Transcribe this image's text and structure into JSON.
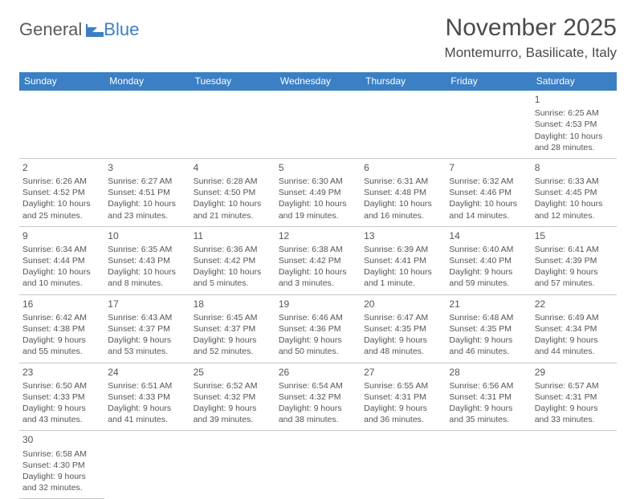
{
  "logo": {
    "part1": "General",
    "part2": "Blue"
  },
  "title": "November 2025",
  "location": "Montemurro, Basilicate, Italy",
  "colors": {
    "header_bg": "#3b7fc4",
    "header_text": "#ffffff",
    "text": "#4a4a4a",
    "cell_text": "#555555",
    "row_border": "#3b7fc4"
  },
  "day_names": [
    "Sunday",
    "Monday",
    "Tuesday",
    "Wednesday",
    "Thursday",
    "Friday",
    "Saturday"
  ],
  "weeks": [
    [
      null,
      null,
      null,
      null,
      null,
      null,
      {
        "n": "1",
        "sunrise": "Sunrise: 6:25 AM",
        "sunset": "Sunset: 4:53 PM",
        "dl1": "Daylight: 10 hours",
        "dl2": "and 28 minutes."
      }
    ],
    [
      {
        "n": "2",
        "sunrise": "Sunrise: 6:26 AM",
        "sunset": "Sunset: 4:52 PM",
        "dl1": "Daylight: 10 hours",
        "dl2": "and 25 minutes."
      },
      {
        "n": "3",
        "sunrise": "Sunrise: 6:27 AM",
        "sunset": "Sunset: 4:51 PM",
        "dl1": "Daylight: 10 hours",
        "dl2": "and 23 minutes."
      },
      {
        "n": "4",
        "sunrise": "Sunrise: 6:28 AM",
        "sunset": "Sunset: 4:50 PM",
        "dl1": "Daylight: 10 hours",
        "dl2": "and 21 minutes."
      },
      {
        "n": "5",
        "sunrise": "Sunrise: 6:30 AM",
        "sunset": "Sunset: 4:49 PM",
        "dl1": "Daylight: 10 hours",
        "dl2": "and 19 minutes."
      },
      {
        "n": "6",
        "sunrise": "Sunrise: 6:31 AM",
        "sunset": "Sunset: 4:48 PM",
        "dl1": "Daylight: 10 hours",
        "dl2": "and 16 minutes."
      },
      {
        "n": "7",
        "sunrise": "Sunrise: 6:32 AM",
        "sunset": "Sunset: 4:46 PM",
        "dl1": "Daylight: 10 hours",
        "dl2": "and 14 minutes."
      },
      {
        "n": "8",
        "sunrise": "Sunrise: 6:33 AM",
        "sunset": "Sunset: 4:45 PM",
        "dl1": "Daylight: 10 hours",
        "dl2": "and 12 minutes."
      }
    ],
    [
      {
        "n": "9",
        "sunrise": "Sunrise: 6:34 AM",
        "sunset": "Sunset: 4:44 PM",
        "dl1": "Daylight: 10 hours",
        "dl2": "and 10 minutes."
      },
      {
        "n": "10",
        "sunrise": "Sunrise: 6:35 AM",
        "sunset": "Sunset: 4:43 PM",
        "dl1": "Daylight: 10 hours",
        "dl2": "and 8 minutes."
      },
      {
        "n": "11",
        "sunrise": "Sunrise: 6:36 AM",
        "sunset": "Sunset: 4:42 PM",
        "dl1": "Daylight: 10 hours",
        "dl2": "and 5 minutes."
      },
      {
        "n": "12",
        "sunrise": "Sunrise: 6:38 AM",
        "sunset": "Sunset: 4:42 PM",
        "dl1": "Daylight: 10 hours",
        "dl2": "and 3 minutes."
      },
      {
        "n": "13",
        "sunrise": "Sunrise: 6:39 AM",
        "sunset": "Sunset: 4:41 PM",
        "dl1": "Daylight: 10 hours",
        "dl2": "and 1 minute."
      },
      {
        "n": "14",
        "sunrise": "Sunrise: 6:40 AM",
        "sunset": "Sunset: 4:40 PM",
        "dl1": "Daylight: 9 hours",
        "dl2": "and 59 minutes."
      },
      {
        "n": "15",
        "sunrise": "Sunrise: 6:41 AM",
        "sunset": "Sunset: 4:39 PM",
        "dl1": "Daylight: 9 hours",
        "dl2": "and 57 minutes."
      }
    ],
    [
      {
        "n": "16",
        "sunrise": "Sunrise: 6:42 AM",
        "sunset": "Sunset: 4:38 PM",
        "dl1": "Daylight: 9 hours",
        "dl2": "and 55 minutes."
      },
      {
        "n": "17",
        "sunrise": "Sunrise: 6:43 AM",
        "sunset": "Sunset: 4:37 PM",
        "dl1": "Daylight: 9 hours",
        "dl2": "and 53 minutes."
      },
      {
        "n": "18",
        "sunrise": "Sunrise: 6:45 AM",
        "sunset": "Sunset: 4:37 PM",
        "dl1": "Daylight: 9 hours",
        "dl2": "and 52 minutes."
      },
      {
        "n": "19",
        "sunrise": "Sunrise: 6:46 AM",
        "sunset": "Sunset: 4:36 PM",
        "dl1": "Daylight: 9 hours",
        "dl2": "and 50 minutes."
      },
      {
        "n": "20",
        "sunrise": "Sunrise: 6:47 AM",
        "sunset": "Sunset: 4:35 PM",
        "dl1": "Daylight: 9 hours",
        "dl2": "and 48 minutes."
      },
      {
        "n": "21",
        "sunrise": "Sunrise: 6:48 AM",
        "sunset": "Sunset: 4:35 PM",
        "dl1": "Daylight: 9 hours",
        "dl2": "and 46 minutes."
      },
      {
        "n": "22",
        "sunrise": "Sunrise: 6:49 AM",
        "sunset": "Sunset: 4:34 PM",
        "dl1": "Daylight: 9 hours",
        "dl2": "and 44 minutes."
      }
    ],
    [
      {
        "n": "23",
        "sunrise": "Sunrise: 6:50 AM",
        "sunset": "Sunset: 4:33 PM",
        "dl1": "Daylight: 9 hours",
        "dl2": "and 43 minutes."
      },
      {
        "n": "24",
        "sunrise": "Sunrise: 6:51 AM",
        "sunset": "Sunset: 4:33 PM",
        "dl1": "Daylight: 9 hours",
        "dl2": "and 41 minutes."
      },
      {
        "n": "25",
        "sunrise": "Sunrise: 6:52 AM",
        "sunset": "Sunset: 4:32 PM",
        "dl1": "Daylight: 9 hours",
        "dl2": "and 39 minutes."
      },
      {
        "n": "26",
        "sunrise": "Sunrise: 6:54 AM",
        "sunset": "Sunset: 4:32 PM",
        "dl1": "Daylight: 9 hours",
        "dl2": "and 38 minutes."
      },
      {
        "n": "27",
        "sunrise": "Sunrise: 6:55 AM",
        "sunset": "Sunset: 4:31 PM",
        "dl1": "Daylight: 9 hours",
        "dl2": "and 36 minutes."
      },
      {
        "n": "28",
        "sunrise": "Sunrise: 6:56 AM",
        "sunset": "Sunset: 4:31 PM",
        "dl1": "Daylight: 9 hours",
        "dl2": "and 35 minutes."
      },
      {
        "n": "29",
        "sunrise": "Sunrise: 6:57 AM",
        "sunset": "Sunset: 4:31 PM",
        "dl1": "Daylight: 9 hours",
        "dl2": "and 33 minutes."
      }
    ],
    [
      {
        "n": "30",
        "sunrise": "Sunrise: 6:58 AM",
        "sunset": "Sunset: 4:30 PM",
        "dl1": "Daylight: 9 hours",
        "dl2": "and 32 minutes."
      },
      null,
      null,
      null,
      null,
      null,
      null
    ]
  ]
}
